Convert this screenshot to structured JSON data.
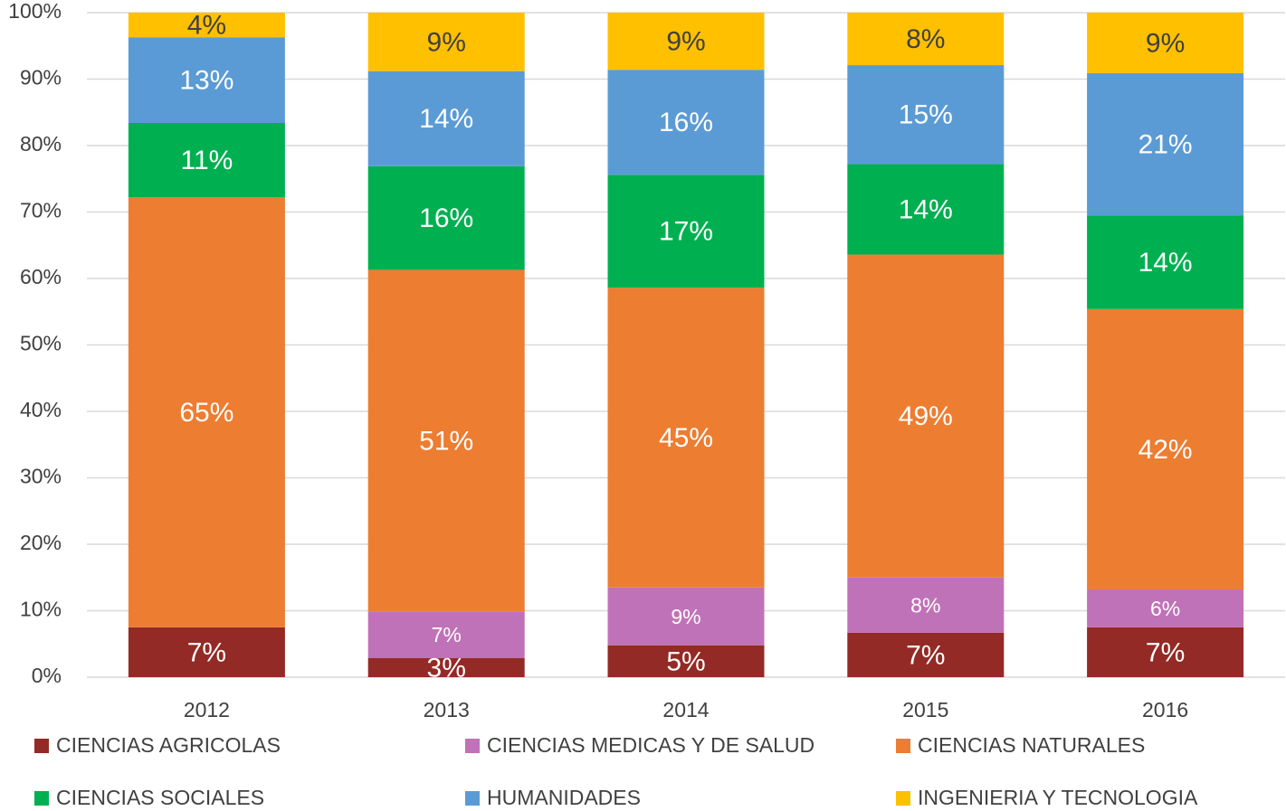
{
  "chart_data": {
    "type": "stacked_bar",
    "categories": [
      "2012",
      "2013",
      "2014",
      "2015",
      "2016"
    ],
    "series": [
      {
        "name": "CIENCIAS AGRICOLAS",
        "color": "#942a25",
        "values": [
          7.5,
          2.9,
          4.8,
          6.7,
          7.5
        ],
        "value_labels": [
          "7%",
          "3%",
          "5%",
          "7%",
          "7%"
        ]
      },
      {
        "name": "CIENCIAS MEDICAS Y DE SALUD",
        "color": "#c072b8",
        "values": [
          0,
          7.0,
          8.7,
          8.3,
          5.7
        ],
        "value_labels": [
          null,
          "7%",
          "9%",
          "8%",
          "6%"
        ]
      },
      {
        "name": "CIENCIAS NATURALES",
        "color": "#ed7d31",
        "values": [
          64.7,
          51.4,
          45.1,
          48.6,
          42.2
        ],
        "value_labels": [
          "65%",
          "51%",
          "45%",
          "49%",
          "42%"
        ]
      },
      {
        "name": "CIENCIAS SOCIALES",
        "color": "#00b050",
        "values": [
          11.2,
          15.6,
          17.0,
          13.6,
          14.1
        ],
        "value_labels": [
          "11%",
          "16%",
          "17%",
          "14%",
          "14%"
        ]
      },
      {
        "name": "HUMANIDADES",
        "color": "#5b9bd5",
        "values": [
          12.9,
          14.3,
          15.8,
          14.9,
          21.4
        ],
        "value_labels": [
          "13%",
          "14%",
          "16%",
          "15%",
          "21%"
        ]
      },
      {
        "name": "INGENIERIA Y TECNOLOGIA",
        "color": "#ffc000",
        "values": [
          3.7,
          8.8,
          8.6,
          7.9,
          9.1
        ],
        "value_labels": [
          "4%",
          "9%",
          "9%",
          "8%",
          "9%"
        ]
      }
    ],
    "ylim": [
      0,
      100
    ],
    "yticks": [
      {
        "value": 0,
        "label": "0%"
      },
      {
        "value": 10,
        "label": "10%"
      },
      {
        "value": 20,
        "label": "20%"
      },
      {
        "value": 30,
        "label": "30%"
      },
      {
        "value": 40,
        "label": "40%"
      },
      {
        "value": 50,
        "label": "50%"
      },
      {
        "value": 60,
        "label": "60%"
      },
      {
        "value": 70,
        "label": "70%"
      },
      {
        "value": 80,
        "label": "80%"
      },
      {
        "value": 90,
        "label": "90%"
      },
      {
        "value": 100,
        "label": "100%"
      }
    ],
    "grid": true,
    "legend": "bottom"
  }
}
